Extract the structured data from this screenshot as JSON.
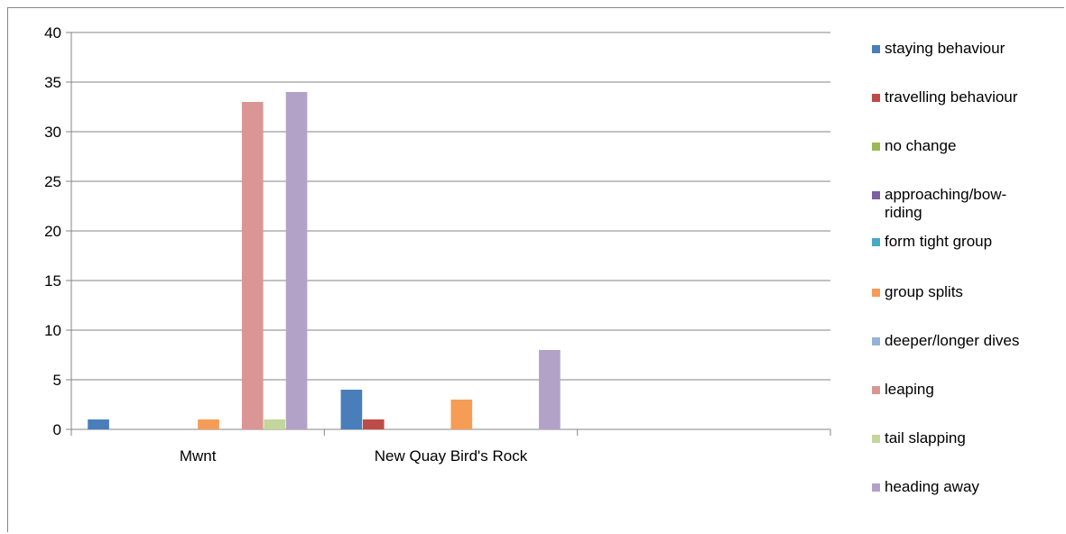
{
  "chart_data": {
    "type": "bar",
    "title": "",
    "xlabel": "",
    "ylabel": "",
    "ylim": [
      0,
      40
    ],
    "yticks": [
      0,
      5,
      10,
      15,
      20,
      25,
      30,
      35,
      40
    ],
    "grid": true,
    "legend_position": "right",
    "categories": [
      "Mwnt",
      "New Quay Bird's Rock",
      ""
    ],
    "series": [
      {
        "name": "staying behaviour",
        "color": "#4A7EBB",
        "values": [
          1,
          4,
          0
        ]
      },
      {
        "name": "travelling behaviour",
        "color": "#BE4B48",
        "values": [
          0,
          1,
          0
        ]
      },
      {
        "name": "no change",
        "color": "#98B954",
        "values": [
          0,
          0,
          0
        ]
      },
      {
        "name": "approaching/bow-riding",
        "color": "#7D60A0",
        "values": [
          0,
          0,
          0
        ]
      },
      {
        "name": "form tight group",
        "color": "#46AAC5",
        "values": [
          0,
          0,
          0
        ]
      },
      {
        "name": "group splits",
        "color": "#F59D56",
        "values": [
          1,
          3,
          0
        ]
      },
      {
        "name": "deeper/longer dives",
        "color": "#95B3D7",
        "values": [
          0,
          0,
          0
        ]
      },
      {
        "name": "leaping",
        "color": "#DA9694",
        "values": [
          33,
          0,
          0
        ]
      },
      {
        "name": "tail slapping",
        "color": "#C3D69B",
        "values": [
          1,
          0,
          0
        ]
      },
      {
        "name": "heading away",
        "color": "#B3A2C7",
        "values": [
          34,
          8,
          0
        ]
      }
    ]
  }
}
